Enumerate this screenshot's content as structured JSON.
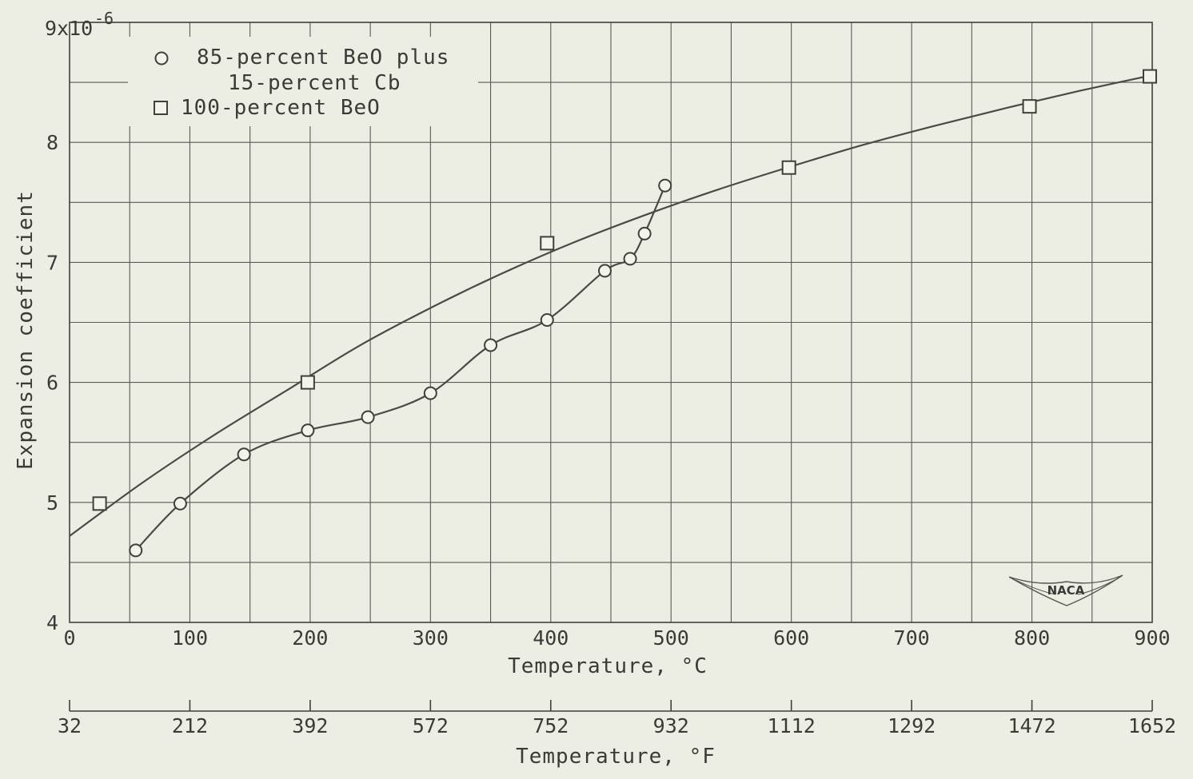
{
  "chart_data": {
    "type": "scatter",
    "xlabel": "Temperature, °C",
    "ylabel": "Expansion coefficient",
    "secondary_x_label": "Temperature, °F",
    "y_multiplier_label": "9x10",
    "y_exponent_label": "-6",
    "xlim": [
      0,
      900
    ],
    "ylim": [
      4,
      9
    ],
    "x_ticks": [
      "0",
      "100",
      "200",
      "300",
      "400",
      "500",
      "600",
      "700",
      "800",
      "900"
    ],
    "y_ticks": [
      "4",
      "5",
      "6",
      "7",
      "8"
    ],
    "secondary_x_ticks": [
      "32",
      "212",
      "392",
      "572",
      "752",
      "932",
      "1112",
      "1292",
      "1472",
      "1652"
    ],
    "grid": true,
    "legend_position": "top-left",
    "series": [
      {
        "name": "85-percent BeO plus 15-percent Cb",
        "name_lines": [
          "85-percent BeO plus",
          "15-percent Cb"
        ],
        "marker": "circle",
        "x": [
          55,
          92,
          145,
          198,
          248,
          300,
          350,
          397,
          445,
          466,
          478,
          495
        ],
        "y": [
          4.6,
          4.99,
          5.4,
          5.6,
          5.71,
          5.91,
          6.31,
          6.52,
          6.93,
          7.03,
          7.24,
          7.64
        ]
      },
      {
        "name": "100-percent BeO",
        "marker": "square",
        "x": [
          25,
          198,
          397,
          598,
          798,
          898
        ],
        "y": [
          4.99,
          6.0,
          7.16,
          7.79,
          8.3,
          8.55
        ]
      }
    ],
    "fit_lines": [
      {
        "series": "100-percent BeO",
        "x": [
          0,
          60,
          120,
          180,
          240,
          300,
          360,
          420,
          480,
          540,
          600,
          660,
          720,
          780,
          840,
          900
        ],
        "y": [
          4.72,
          5.16,
          5.56,
          5.93,
          6.3,
          6.62,
          6.91,
          7.17,
          7.4,
          7.61,
          7.8,
          7.98,
          8.14,
          8.29,
          8.43,
          8.56
        ]
      }
    ],
    "annotations": [
      "NACA"
    ]
  }
}
